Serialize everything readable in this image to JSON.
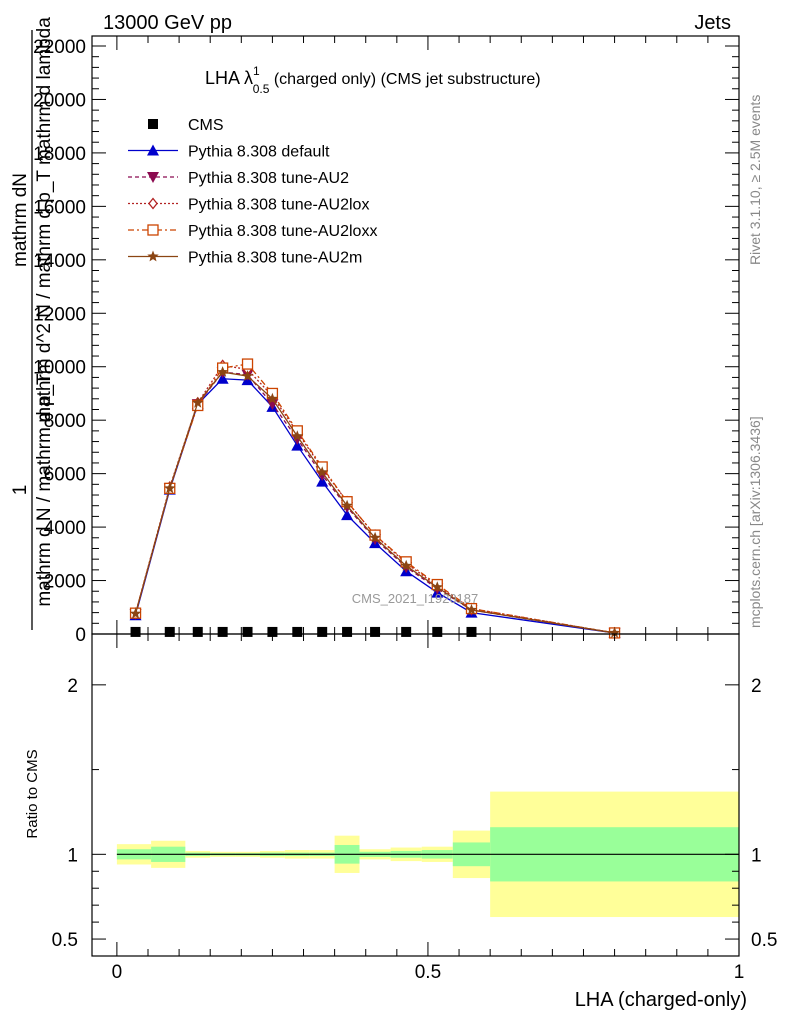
{
  "header": {
    "left": "13000 GeV pp",
    "right": "Jets"
  },
  "side": {
    "rivet": "Rivet 3.1.10, ≥ 2.5M events",
    "mcplots": "mcplots.cern.ch [arXiv:1306.3436]"
  },
  "chart_data": {
    "type": "line",
    "title_main": "LHA λ",
    "title_sup": "1",
    "title_sub": "0.5",
    "title_rest": " (charged only) (CMS jet substructure)",
    "ylabel_num": "1",
    "ylabel_den": "mathrm d N / mathrm d p_T",
    "ylabel_rhs": "mathrm d^2 N / mathrm d p_T mathrm d lambda",
    "ylabel_full_den": "mathrm dN",
    "xlabel": "LHA (charged-only)",
    "ratio_ylabel": "Ratio to CMS",
    "watermark": "CMS_2021_I1920187",
    "xlim": [
      -0.04,
      1.0
    ],
    "ylim": [
      0,
      22000
    ],
    "yticks": [
      0,
      2000,
      4000,
      6000,
      8000,
      10000,
      12000,
      14000,
      16000,
      18000,
      20000,
      22000
    ],
    "ytick_labels": [
      "0",
      "2000",
      "4000",
      "6000",
      "8000",
      "10000",
      "12000",
      "14000",
      "16000",
      "18000",
      "20000",
      "22000"
    ],
    "xticks": [
      0,
      0.5,
      1
    ],
    "xtick_labels": [
      "0",
      "0.5",
      "1"
    ],
    "ratio_ylim": [
      0.4,
      2.3
    ],
    "ratio_yticks": [
      0.5,
      1,
      2
    ],
    "ratio_ytick_labels": [
      "0.5",
      "1",
      "2"
    ],
    "x": [
      0.03,
      0.085,
      0.13,
      0.17,
      0.21,
      0.25,
      0.29,
      0.33,
      0.37,
      0.415,
      0.465,
      0.515,
      0.57,
      0.8
    ],
    "cms": [
      40,
      40,
      40,
      40,
      40,
      40,
      40,
      40,
      40,
      40,
      40,
      40,
      40,
      null
    ],
    "series": [
      {
        "name": "CMS",
        "color": "#000000",
        "marker": "square"
      },
      {
        "name": "Pythia 8.308 default",
        "color": "#0000cc",
        "marker": "triangle-up",
        "dash": "",
        "values": [
          700,
          5400,
          8600,
          9550,
          9500,
          8500,
          7050,
          5700,
          4450,
          3400,
          2350,
          1550,
          800,
          40
        ]
      },
      {
        "name": "Pythia 8.308 tune-AU2",
        "color": "#8b0a50",
        "marker": "triangle-down",
        "dash": "4,3",
        "values": [
          750,
          5450,
          8600,
          9800,
          9700,
          8600,
          7300,
          5950,
          4750,
          3550,
          2500,
          1700,
          900,
          40
        ]
      },
      {
        "name": "Pythia 8.308 tune-AU2lox",
        "color": "#b22222",
        "marker": "diamond-open",
        "dash": "2,2",
        "values": [
          780,
          5500,
          8650,
          10050,
          9900,
          8900,
          7550,
          6200,
          4950,
          3700,
          2650,
          1800,
          950,
          40
        ]
      },
      {
        "name": "Pythia 8.308 tune-AU2loxx",
        "color": "#cc4400",
        "marker": "square-open",
        "dash": "6,3,2,3",
        "values": [
          780,
          5450,
          8550,
          9950,
          10100,
          9000,
          7600,
          6250,
          4950,
          3700,
          2700,
          1850,
          950,
          40
        ]
      },
      {
        "name": "Pythia 8.308 tune-AU2m",
        "color": "#8b4513",
        "marker": "star",
        "dash": "",
        "values": [
          760,
          5450,
          8650,
          9800,
          9650,
          8800,
          7400,
          6050,
          4800,
          3600,
          2550,
          1750,
          900,
          40
        ]
      }
    ],
    "ratio_bands": [
      {
        "x0": 0.0,
        "x1": 0.055,
        "yellow": [
          0.94,
          1.06
        ],
        "green": [
          0.97,
          1.03
        ]
      },
      {
        "x0": 0.055,
        "x1": 0.11,
        "yellow": [
          0.92,
          1.08
        ],
        "green": [
          0.955,
          1.045
        ]
      },
      {
        "x0": 0.11,
        "x1": 0.15,
        "yellow": [
          0.98,
          1.02
        ],
        "green": [
          0.99,
          1.01
        ]
      },
      {
        "x0": 0.15,
        "x1": 0.19,
        "yellow": [
          0.985,
          1.015
        ],
        "green": [
          0.993,
          1.007
        ]
      },
      {
        "x0": 0.19,
        "x1": 0.23,
        "yellow": [
          0.985,
          1.015
        ],
        "green": [
          0.993,
          1.007
        ]
      },
      {
        "x0": 0.23,
        "x1": 0.27,
        "yellow": [
          0.98,
          1.02
        ],
        "green": [
          0.99,
          1.01
        ]
      },
      {
        "x0": 0.27,
        "x1": 0.31,
        "yellow": [
          0.975,
          1.025
        ],
        "green": [
          0.99,
          1.01
        ]
      },
      {
        "x0": 0.31,
        "x1": 0.35,
        "yellow": [
          0.975,
          1.025
        ],
        "green": [
          0.99,
          1.01
        ]
      },
      {
        "x0": 0.35,
        "x1": 0.39,
        "yellow": [
          0.89,
          1.11
        ],
        "green": [
          0.945,
          1.055
        ]
      },
      {
        "x0": 0.39,
        "x1": 0.44,
        "yellow": [
          0.97,
          1.03
        ],
        "green": [
          0.985,
          1.015
        ]
      },
      {
        "x0": 0.44,
        "x1": 0.49,
        "yellow": [
          0.96,
          1.04
        ],
        "green": [
          0.98,
          1.02
        ]
      },
      {
        "x0": 0.49,
        "x1": 0.54,
        "yellow": [
          0.955,
          1.045
        ],
        "green": [
          0.975,
          1.025
        ]
      },
      {
        "x0": 0.54,
        "x1": 0.6,
        "yellow": [
          0.86,
          1.14
        ],
        "green": [
          0.93,
          1.07
        ]
      },
      {
        "x0": 0.6,
        "x1": 1.0,
        "yellow": [
          0.63,
          1.37
        ],
        "green": [
          0.84,
          1.16
        ]
      }
    ]
  }
}
